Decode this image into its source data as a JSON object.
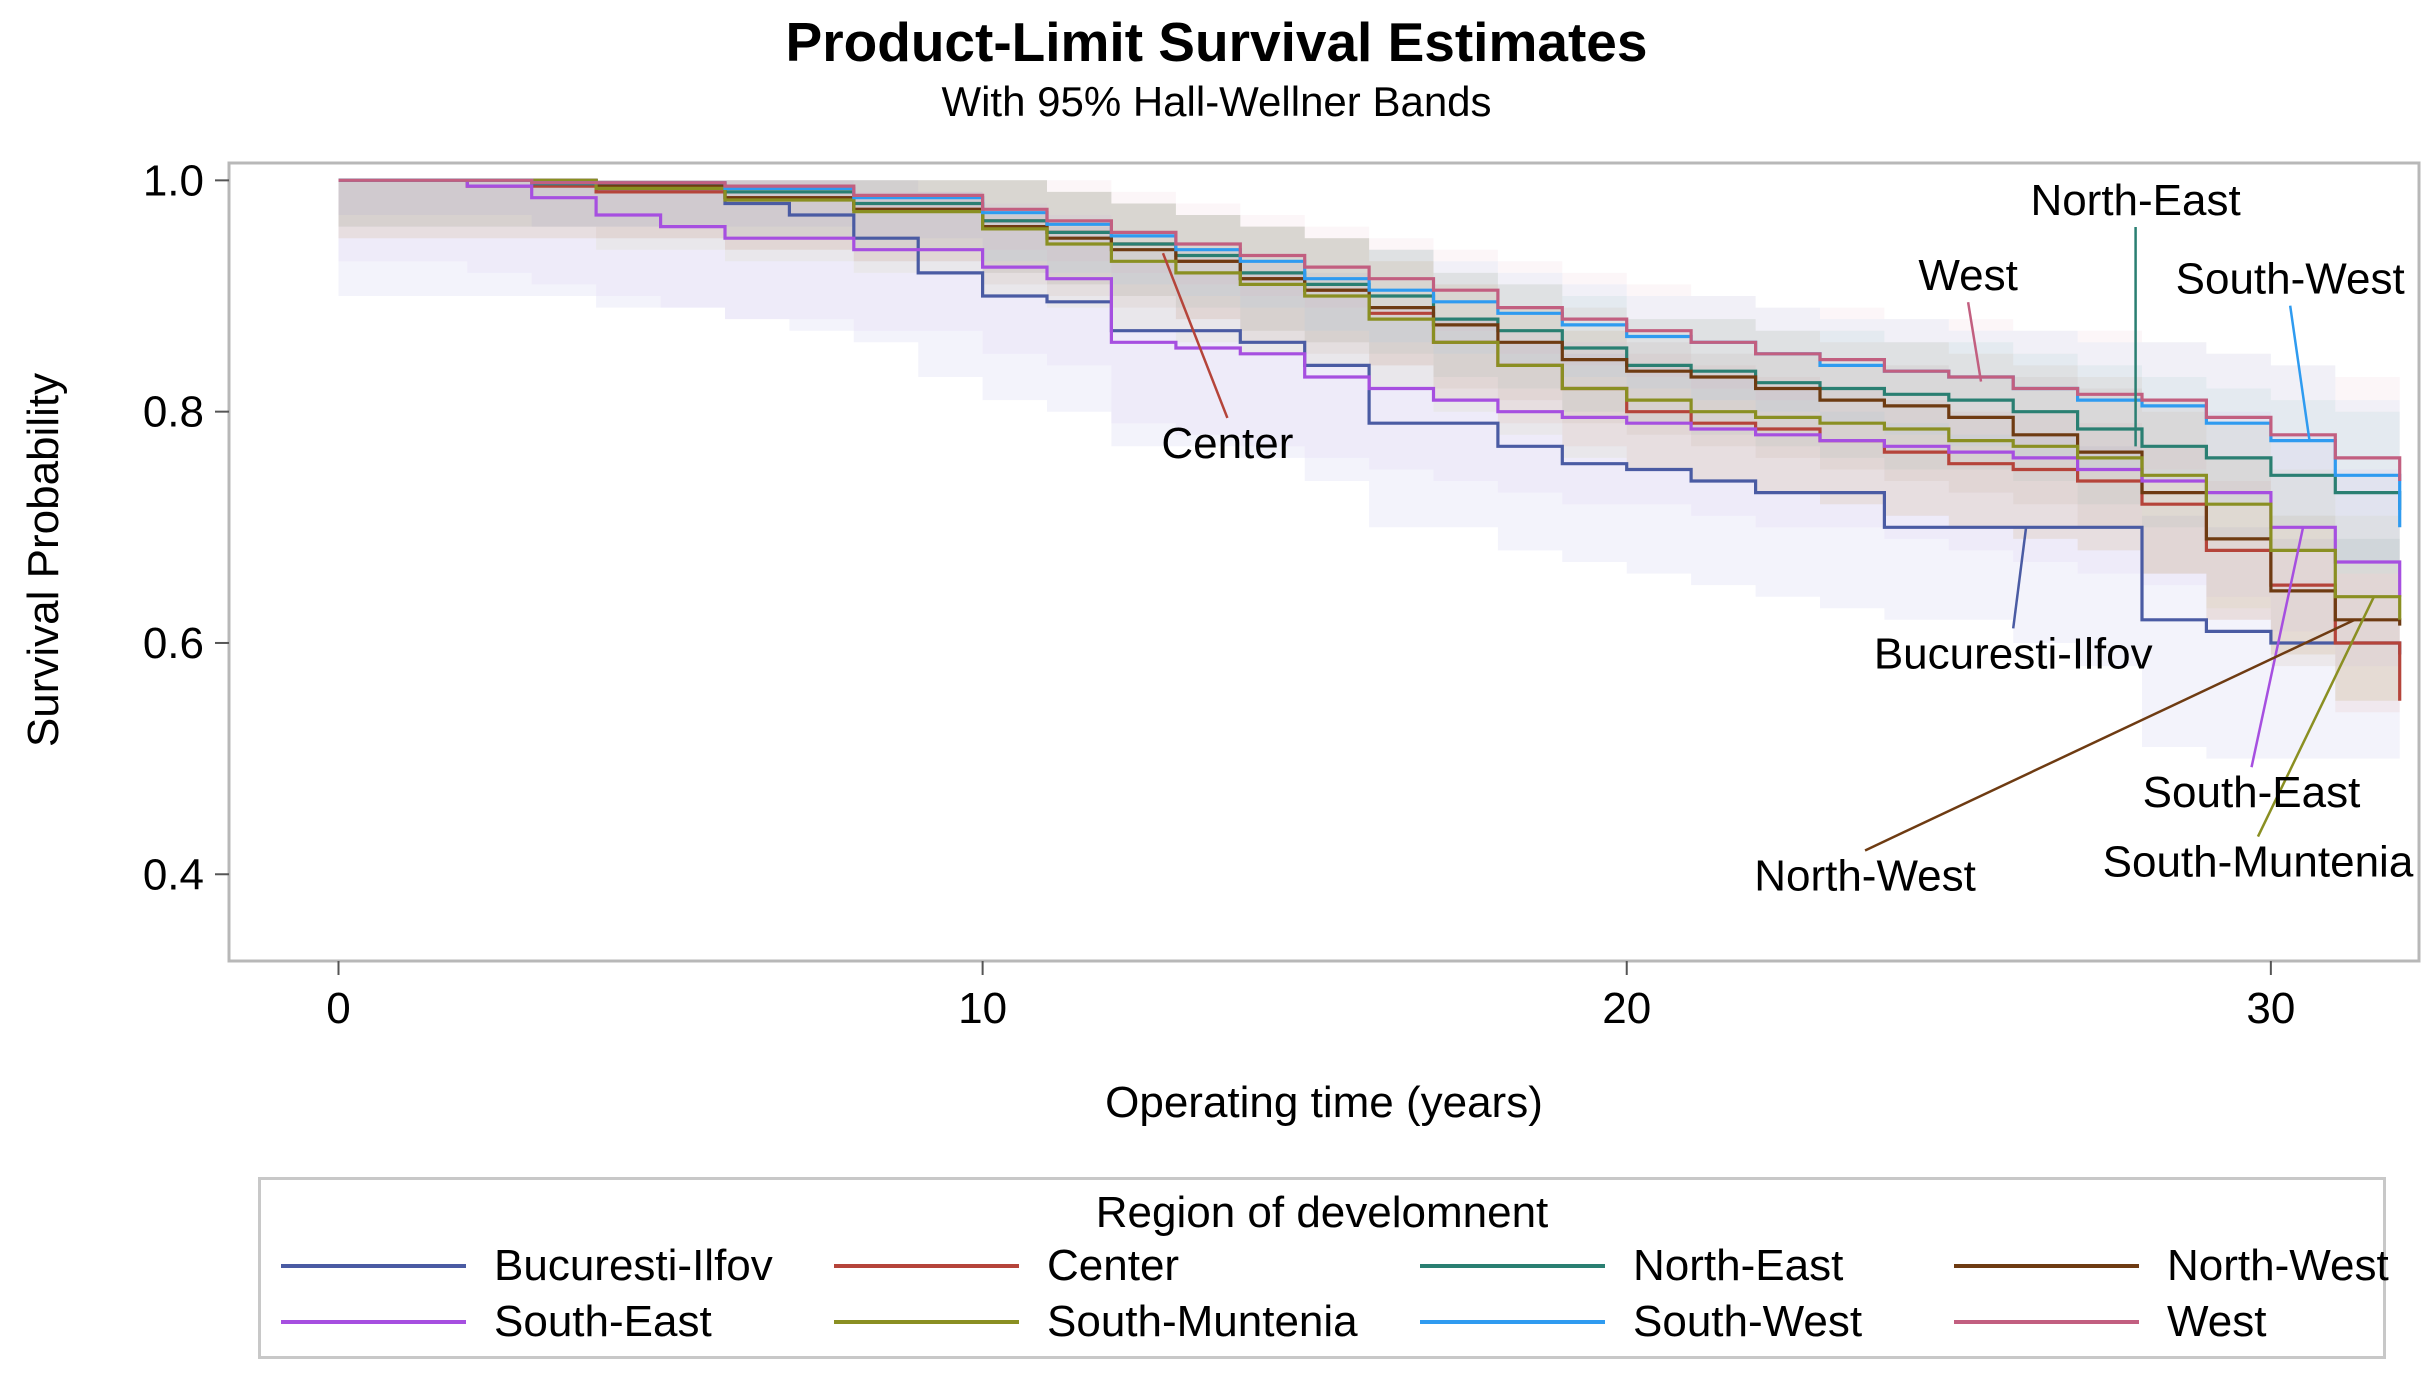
{
  "chart_data": {
    "type": "line",
    "title": "Product-Limit Survival Estimates",
    "subtitle": "With 95% Hall-Wellner Bands",
    "xlabel": "Operating time (years)",
    "ylabel": "Survival Probability",
    "xlim": [
      -1.7,
      32.3
    ],
    "ylim": [
      0.325,
      1.015
    ],
    "xticks": [
      0,
      10,
      20,
      30
    ],
    "xtick_labels": [
      "0",
      "10",
      "20",
      "30"
    ],
    "yticks": [
      0.4,
      0.6,
      0.8,
      1.0
    ],
    "ytick_labels": [
      "0.4",
      "0.6",
      "0.8",
      "1.0"
    ],
    "legend_title": "Region of develomnent",
    "grid": false,
    "series": [
      {
        "name": "Bucuresti-Ilfov",
        "color": "#4a5ba3",
        "x": [
          0,
          4,
          6,
          7,
          8,
          9,
          10,
          11,
          12,
          14,
          15,
          16,
          18,
          19,
          20,
          21,
          22,
          23,
          24,
          25,
          26,
          27,
          28,
          29,
          30,
          31,
          32
        ],
        "y": [
          1.0,
          0.99,
          0.98,
          0.97,
          0.95,
          0.92,
          0.9,
          0.895,
          0.87,
          0.86,
          0.84,
          0.79,
          0.77,
          0.755,
          0.75,
          0.74,
          0.73,
          0.73,
          0.7,
          0.7,
          0.7,
          0.7,
          0.62,
          0.61,
          0.6,
          0.6,
          0.59
        ],
        "band_color": "#8a8ed4",
        "band_low": [
          0.9,
          0.89,
          0.88,
          0.87,
          0.86,
          0.83,
          0.81,
          0.8,
          0.77,
          0.76,
          0.74,
          0.7,
          0.68,
          0.67,
          0.66,
          0.65,
          0.64,
          0.63,
          0.62,
          0.62,
          0.6,
          0.58,
          0.51,
          0.5,
          0.5,
          0.5,
          0.49
        ],
        "band_high": [
          1.0,
          1.0,
          1.0,
          1.0,
          1.0,
          0.99,
          0.97,
          0.96,
          0.94,
          0.93,
          0.92,
          0.88,
          0.86,
          0.85,
          0.84,
          0.83,
          0.82,
          0.8,
          0.79,
          0.78,
          0.78,
          0.77,
          0.71,
          0.7,
          0.69,
          0.69,
          0.68
        ]
      },
      {
        "name": "Center",
        "color": "#b5443a",
        "x": [
          0,
          2,
          4,
          6,
          8,
          10,
          11,
          12,
          13,
          14,
          15,
          16,
          17,
          18,
          19,
          20,
          21,
          22,
          23,
          24,
          25,
          26,
          27,
          28,
          29,
          30,
          31,
          32
        ],
        "y": [
          1.0,
          0.995,
          0.99,
          0.985,
          0.975,
          0.965,
          0.955,
          0.945,
          0.93,
          0.915,
          0.905,
          0.885,
          0.86,
          0.84,
          0.82,
          0.8,
          0.79,
          0.785,
          0.775,
          0.765,
          0.755,
          0.75,
          0.74,
          0.72,
          0.68,
          0.65,
          0.6,
          0.55
        ],
        "band_color": "#d98880",
        "band_low": [
          0.95,
          0.95,
          0.95,
          0.94,
          0.93,
          0.92,
          0.91,
          0.9,
          0.88,
          0.87,
          0.86,
          0.84,
          0.81,
          0.79,
          0.77,
          0.75,
          0.74,
          0.73,
          0.72,
          0.71,
          0.7,
          0.69,
          0.68,
          0.66,
          0.62,
          0.59,
          0.54,
          0.54
        ],
        "band_high": [
          1.0,
          1.0,
          1.0,
          1.0,
          1.0,
          1.0,
          0.99,
          0.98,
          0.97,
          0.96,
          0.95,
          0.93,
          0.91,
          0.89,
          0.87,
          0.85,
          0.84,
          0.83,
          0.82,
          0.81,
          0.8,
          0.8,
          0.79,
          0.77,
          0.74,
          0.71,
          0.66,
          0.61
        ]
      },
      {
        "name": "North-East",
        "color": "#2a7f72",
        "x": [
          0,
          3,
          6,
          8,
          10,
          11,
          12,
          13,
          14,
          15,
          16,
          17,
          18,
          19,
          20,
          21,
          22,
          23,
          24,
          25,
          26,
          27,
          28,
          29,
          30,
          31,
          32
        ],
        "y": [
          1.0,
          0.997,
          0.99,
          0.98,
          0.965,
          0.955,
          0.945,
          0.935,
          0.92,
          0.91,
          0.9,
          0.88,
          0.87,
          0.855,
          0.84,
          0.835,
          0.825,
          0.82,
          0.815,
          0.81,
          0.8,
          0.785,
          0.77,
          0.76,
          0.745,
          0.73,
          0.715
        ],
        "band_color": "#6fb7ab",
        "band_low": [
          0.96,
          0.96,
          0.95,
          0.94,
          0.92,
          0.91,
          0.9,
          0.89,
          0.87,
          0.86,
          0.85,
          0.83,
          0.82,
          0.8,
          0.79,
          0.78,
          0.77,
          0.76,
          0.75,
          0.75,
          0.74,
          0.72,
          0.7,
          0.69,
          0.68,
          0.66,
          0.64
        ],
        "band_high": [
          1.0,
          1.0,
          1.0,
          1.0,
          1.0,
          0.99,
          0.98,
          0.97,
          0.96,
          0.95,
          0.94,
          0.92,
          0.91,
          0.9,
          0.88,
          0.88,
          0.87,
          0.87,
          0.86,
          0.86,
          0.85,
          0.84,
          0.83,
          0.82,
          0.81,
          0.8,
          0.79
        ]
      },
      {
        "name": "North-West",
        "color": "#6e3b12",
        "x": [
          0,
          4,
          6,
          8,
          10,
          11,
          12,
          13,
          14,
          15,
          16,
          17,
          18,
          19,
          20,
          21,
          22,
          23,
          24,
          25,
          26,
          27,
          28,
          29,
          30,
          31,
          32
        ],
        "y": [
          1.0,
          0.995,
          0.985,
          0.975,
          0.96,
          0.95,
          0.94,
          0.93,
          0.915,
          0.905,
          0.89,
          0.875,
          0.86,
          0.845,
          0.835,
          0.83,
          0.82,
          0.81,
          0.805,
          0.795,
          0.78,
          0.765,
          0.73,
          0.69,
          0.645,
          0.62,
          0.615
        ],
        "band_color": "#b08a62",
        "band_low": [
          0.96,
          0.95,
          0.94,
          0.93,
          0.91,
          0.9,
          0.89,
          0.88,
          0.86,
          0.85,
          0.84,
          0.82,
          0.81,
          0.79,
          0.78,
          0.77,
          0.76,
          0.75,
          0.74,
          0.73,
          0.72,
          0.7,
          0.66,
          0.62,
          0.58,
          0.55,
          0.55
        ],
        "band_high": [
          1.0,
          1.0,
          1.0,
          1.0,
          1.0,
          0.99,
          0.98,
          0.97,
          0.96,
          0.95,
          0.94,
          0.92,
          0.91,
          0.89,
          0.88,
          0.88,
          0.87,
          0.86,
          0.86,
          0.85,
          0.84,
          0.83,
          0.8,
          0.76,
          0.71,
          0.69,
          0.68
        ]
      },
      {
        "name": "South-East",
        "color": "#a64fe0",
        "x": [
          0,
          2,
          3,
          4,
          5,
          6,
          8,
          10,
          11,
          12,
          13,
          14,
          15,
          16,
          17,
          18,
          19,
          20,
          21,
          22,
          23,
          24,
          25,
          26,
          27,
          28,
          29,
          30,
          31,
          32
        ],
        "y": [
          1.0,
          0.995,
          0.985,
          0.97,
          0.96,
          0.95,
          0.94,
          0.925,
          0.915,
          0.86,
          0.855,
          0.85,
          0.83,
          0.82,
          0.81,
          0.8,
          0.795,
          0.79,
          0.785,
          0.78,
          0.775,
          0.77,
          0.765,
          0.76,
          0.75,
          0.74,
          0.73,
          0.7,
          0.67,
          0.64
        ],
        "band_color": "#c9a3ef",
        "band_low": [
          0.93,
          0.92,
          0.91,
          0.9,
          0.89,
          0.88,
          0.87,
          0.85,
          0.84,
          0.79,
          0.78,
          0.77,
          0.76,
          0.75,
          0.74,
          0.73,
          0.72,
          0.72,
          0.71,
          0.7,
          0.7,
          0.69,
          0.68,
          0.67,
          0.66,
          0.65,
          0.64,
          0.61,
          0.58,
          0.55
        ],
        "band_high": [
          1.0,
          1.0,
          1.0,
          1.0,
          1.0,
          1.0,
          0.99,
          0.98,
          0.97,
          0.93,
          0.92,
          0.92,
          0.9,
          0.89,
          0.88,
          0.87,
          0.86,
          0.86,
          0.85,
          0.85,
          0.84,
          0.84,
          0.83,
          0.83,
          0.82,
          0.81,
          0.8,
          0.78,
          0.75,
          0.72
        ]
      },
      {
        "name": "South-Muntenia",
        "color": "#8a8f22",
        "x": [
          0,
          4,
          6,
          8,
          10,
          11,
          12,
          13,
          14,
          15,
          16,
          17,
          18,
          19,
          20,
          21,
          22,
          23,
          24,
          25,
          26,
          27,
          28,
          29,
          30,
          31,
          32
        ],
        "y": [
          1.0,
          0.993,
          0.983,
          0.973,
          0.958,
          0.945,
          0.93,
          0.92,
          0.91,
          0.9,
          0.88,
          0.86,
          0.84,
          0.82,
          0.81,
          0.8,
          0.795,
          0.79,
          0.785,
          0.775,
          0.77,
          0.76,
          0.745,
          0.72,
          0.68,
          0.64,
          0.62
        ],
        "band_color": "#c4c77a",
        "band_low": [
          0.95,
          0.94,
          0.93,
          0.92,
          0.9,
          0.89,
          0.87,
          0.86,
          0.85,
          0.84,
          0.82,
          0.8,
          0.78,
          0.76,
          0.75,
          0.74,
          0.73,
          0.72,
          0.71,
          0.7,
          0.69,
          0.68,
          0.66,
          0.63,
          0.59,
          0.55,
          0.54
        ],
        "band_high": [
          1.0,
          1.0,
          1.0,
          1.0,
          1.0,
          0.99,
          0.98,
          0.97,
          0.96,
          0.95,
          0.93,
          0.91,
          0.89,
          0.87,
          0.86,
          0.85,
          0.85,
          0.84,
          0.84,
          0.83,
          0.83,
          0.82,
          0.81,
          0.79,
          0.75,
          0.71,
          0.7
        ]
      },
      {
        "name": "South-West",
        "color": "#2f9bf0",
        "x": [
          0,
          3,
          6,
          8,
          10,
          11,
          12,
          13,
          14,
          15,
          16,
          17,
          18,
          19,
          20,
          21,
          22,
          23,
          24,
          25,
          26,
          27,
          28,
          29,
          30,
          31,
          32
        ],
        "y": [
          1.0,
          0.998,
          0.993,
          0.985,
          0.972,
          0.962,
          0.952,
          0.94,
          0.93,
          0.915,
          0.905,
          0.895,
          0.885,
          0.875,
          0.865,
          0.86,
          0.85,
          0.84,
          0.835,
          0.83,
          0.82,
          0.81,
          0.805,
          0.79,
          0.775,
          0.745,
          0.7
        ],
        "band_color": "#8cc8f5",
        "band_low": [
          0.97,
          0.96,
          0.96,
          0.95,
          0.93,
          0.92,
          0.91,
          0.9,
          0.89,
          0.87,
          0.86,
          0.85,
          0.84,
          0.83,
          0.82,
          0.81,
          0.8,
          0.79,
          0.78,
          0.77,
          0.76,
          0.75,
          0.74,
          0.72,
          0.7,
          0.67,
          0.63
        ],
        "band_high": [
          1.0,
          1.0,
          1.0,
          1.0,
          1.0,
          0.99,
          0.98,
          0.97,
          0.96,
          0.95,
          0.94,
          0.93,
          0.92,
          0.91,
          0.9,
          0.9,
          0.89,
          0.88,
          0.88,
          0.87,
          0.87,
          0.86,
          0.86,
          0.85,
          0.84,
          0.81,
          0.77
        ]
      },
      {
        "name": "West",
        "color": "#c25f80",
        "x": [
          0,
          3,
          6,
          8,
          10,
          11,
          12,
          13,
          14,
          15,
          16,
          17,
          18,
          19,
          20,
          21,
          22,
          23,
          24,
          25,
          26,
          27,
          28,
          29,
          30,
          31,
          32
        ],
        "y": [
          1.0,
          0.998,
          0.995,
          0.987,
          0.975,
          0.965,
          0.955,
          0.945,
          0.935,
          0.925,
          0.915,
          0.905,
          0.89,
          0.88,
          0.87,
          0.86,
          0.85,
          0.845,
          0.835,
          0.83,
          0.82,
          0.815,
          0.81,
          0.795,
          0.78,
          0.76,
          0.74
        ],
        "band_color": "#e3a3b8",
        "band_low": [
          0.97,
          0.96,
          0.96,
          0.95,
          0.94,
          0.93,
          0.92,
          0.91,
          0.9,
          0.89,
          0.88,
          0.87,
          0.85,
          0.84,
          0.83,
          0.82,
          0.81,
          0.8,
          0.79,
          0.78,
          0.77,
          0.76,
          0.75,
          0.73,
          0.71,
          0.69,
          0.67
        ],
        "band_high": [
          1.0,
          1.0,
          1.0,
          1.0,
          1.0,
          1.0,
          0.99,
          0.98,
          0.97,
          0.96,
          0.95,
          0.94,
          0.93,
          0.92,
          0.91,
          0.9,
          0.89,
          0.89,
          0.88,
          0.88,
          0.87,
          0.87,
          0.86,
          0.85,
          0.84,
          0.83,
          0.82
        ]
      }
    ],
    "annotations": [
      {
        "text": "Center",
        "series": "Center",
        "x": 12.8,
        "y": 0.937,
        "label_x": 13.8,
        "label_y": 0.76
      },
      {
        "text": "North-East",
        "series": "North-East",
        "x": 27.9,
        "y": 0.77,
        "label_x": 27.9,
        "label_y": 0.97
      },
      {
        "text": "West",
        "series": "West",
        "x": 25.5,
        "y": 0.826,
        "label_x": 25.3,
        "label_y": 0.905
      },
      {
        "text": "South-West",
        "series": "South-West",
        "x": 30.6,
        "y": 0.775,
        "label_x": 30.3,
        "label_y": 0.902
      },
      {
        "text": "Bucuresti-Ilfov",
        "series": "Bucuresti-Ilfov",
        "x": 26.2,
        "y": 0.7,
        "label_x": 26.0,
        "label_y": 0.578
      },
      {
        "text": "South-East",
        "series": "South-East",
        "x": 30.5,
        "y": 0.7,
        "label_x": 29.7,
        "label_y": 0.458
      },
      {
        "text": "South-Muntenia",
        "series": "South-Muntenia",
        "x": 31.6,
        "y": 0.64,
        "label_x": 29.8,
        "label_y": 0.398
      },
      {
        "text": "North-West",
        "series": "North-West",
        "x": 31.3,
        "y": 0.62,
        "label_x": 23.7,
        "label_y": 0.386
      }
    ]
  }
}
